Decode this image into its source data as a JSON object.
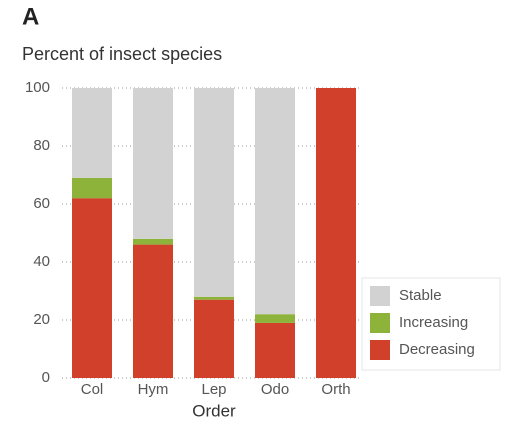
{
  "chart_data": {
    "type": "stacked-bar",
    "panel": "A",
    "title": "Percent of insect species",
    "x_label": "Order",
    "categories": [
      "Col",
      "Hym",
      "Lep",
      "Odo",
      "Orth"
    ],
    "series": [
      {
        "name": "Stable",
        "color": "#d2d2d2",
        "values": [
          31,
          52,
          72,
          78,
          0
        ]
      },
      {
        "name": "Increasing",
        "color": "#8db33a",
        "values": [
          7,
          2,
          1,
          3,
          0
        ]
      },
      {
        "name": "Decreasing",
        "color": "#d0402a",
        "values": [
          62,
          46,
          27,
          19,
          100
        ]
      }
    ],
    "ylim": [
      0,
      100
    ],
    "yticks": [
      0,
      20,
      40,
      60,
      80,
      100
    ],
    "grid": true
  }
}
